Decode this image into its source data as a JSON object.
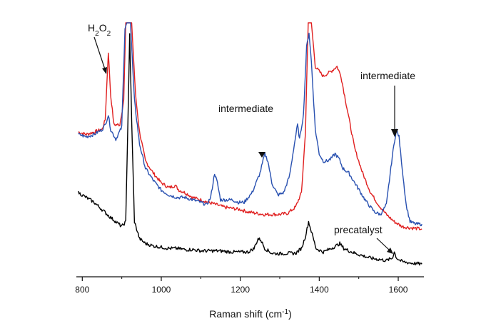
{
  "chart_data": {
    "type": "line",
    "title": "",
    "xlabel": {
      "main": "Raman shift (cm",
      "sup": "-1",
      "close": ")"
    },
    "ylabel": "",
    "xlim": [
      785,
      1665
    ],
    "ylim": [
      0,
      100
    ],
    "xticks": [
      800,
      1000,
      1200,
      1400,
      1600
    ],
    "grid": false,
    "series": [
      {
        "color": "#e02020",
        "points": [
          [
            790,
            55
          ],
          [
            810,
            54
          ],
          [
            830,
            55
          ],
          [
            850,
            56
          ],
          [
            858,
            60
          ],
          [
            866,
            88
          ],
          [
            872,
            70
          ],
          [
            880,
            58
          ],
          [
            895,
            58
          ],
          [
            905,
            68
          ],
          [
            910,
            100
          ],
          [
            925,
            100
          ],
          [
            935,
            70
          ],
          [
            945,
            55
          ],
          [
            960,
            43
          ],
          [
            980,
            38
          ],
          [
            1000,
            34
          ],
          [
            1020,
            32
          ],
          [
            1035,
            33
          ],
          [
            1045,
            31
          ],
          [
            1060,
            30
          ],
          [
            1080,
            28
          ],
          [
            1100,
            27
          ],
          [
            1120,
            26
          ],
          [
            1140,
            25
          ],
          [
            1160,
            24
          ],
          [
            1180,
            23.5
          ],
          [
            1200,
            23
          ],
          [
            1220,
            22
          ],
          [
            1240,
            21.5
          ],
          [
            1260,
            21
          ],
          [
            1280,
            21
          ],
          [
            1300,
            21
          ],
          [
            1320,
            21.5
          ],
          [
            1340,
            24
          ],
          [
            1355,
            30
          ],
          [
            1365,
            55
          ],
          [
            1372,
            100
          ],
          [
            1380,
            100
          ],
          [
            1390,
            82
          ],
          [
            1410,
            78
          ],
          [
            1420,
            79
          ],
          [
            1430,
            80
          ],
          [
            1445,
            82
          ],
          [
            1455,
            78
          ],
          [
            1470,
            65
          ],
          [
            1490,
            48
          ],
          [
            1510,
            38
          ],
          [
            1530,
            30
          ],
          [
            1550,
            25
          ],
          [
            1570,
            21
          ],
          [
            1590,
            18
          ],
          [
            1610,
            16
          ],
          [
            1630,
            15.5
          ],
          [
            1660,
            15
          ]
        ]
      },
      {
        "color": "#2850b0",
        "points": [
          [
            790,
            54
          ],
          [
            810,
            53
          ],
          [
            830,
            54
          ],
          [
            850,
            56
          ],
          [
            858,
            58
          ],
          [
            866,
            62
          ],
          [
            872,
            56
          ],
          [
            885,
            52
          ],
          [
            900,
            57
          ],
          [
            908,
            98
          ],
          [
            913,
            100
          ],
          [
            922,
            100
          ],
          [
            932,
            68
          ],
          [
            945,
            50
          ],
          [
            960,
            40
          ],
          [
            980,
            35
          ],
          [
            1000,
            31
          ],
          [
            1020,
            29
          ],
          [
            1040,
            28
          ],
          [
            1060,
            28
          ],
          [
            1080,
            27
          ],
          [
            1100,
            26
          ],
          [
            1115,
            25
          ],
          [
            1125,
            28
          ],
          [
            1135,
            38
          ],
          [
            1142,
            34
          ],
          [
            1150,
            27
          ],
          [
            1165,
            27
          ],
          [
            1180,
            27
          ],
          [
            1195,
            26
          ],
          [
            1210,
            26
          ],
          [
            1230,
            30
          ],
          [
            1250,
            38
          ],
          [
            1262,
            46
          ],
          [
            1270,
            43
          ],
          [
            1280,
            34
          ],
          [
            1295,
            29
          ],
          [
            1310,
            30
          ],
          [
            1325,
            37
          ],
          [
            1335,
            48
          ],
          [
            1345,
            58
          ],
          [
            1350,
            52
          ],
          [
            1360,
            62
          ],
          [
            1368,
            90
          ],
          [
            1374,
            96
          ],
          [
            1380,
            84
          ],
          [
            1390,
            56
          ],
          [
            1400,
            46
          ],
          [
            1410,
            43
          ],
          [
            1420,
            43
          ],
          [
            1430,
            44
          ],
          [
            1440,
            46
          ],
          [
            1450,
            44
          ],
          [
            1460,
            40
          ],
          [
            1475,
            38
          ],
          [
            1490,
            34
          ],
          [
            1505,
            30
          ],
          [
            1520,
            26
          ],
          [
            1540,
            22
          ],
          [
            1555,
            21
          ],
          [
            1570,
            25
          ],
          [
            1585,
            45
          ],
          [
            1595,
            56
          ],
          [
            1602,
            53
          ],
          [
            1610,
            40
          ],
          [
            1620,
            25
          ],
          [
            1630,
            18
          ],
          [
            1645,
            17
          ],
          [
            1660,
            17
          ]
        ]
      },
      {
        "color": "#000000",
        "points": [
          [
            790,
            30
          ],
          [
            810,
            28
          ],
          [
            830,
            26
          ],
          [
            850,
            23
          ],
          [
            870,
            20
          ],
          [
            885,
            18
          ],
          [
            900,
            16
          ],
          [
            910,
            18
          ],
          [
            915,
            55
          ],
          [
            920,
            95
          ],
          [
            925,
            60
          ],
          [
            932,
            18
          ],
          [
            945,
            11
          ],
          [
            960,
            9
          ],
          [
            980,
            8
          ],
          [
            1000,
            7.5
          ],
          [
            1020,
            7
          ],
          [
            1040,
            7
          ],
          [
            1060,
            6.5
          ],
          [
            1080,
            6.5
          ],
          [
            1100,
            6
          ],
          [
            1120,
            6
          ],
          [
            1140,
            6
          ],
          [
            1160,
            5.8
          ],
          [
            1180,
            5.5
          ],
          [
            1200,
            5.5
          ],
          [
            1220,
            5.5
          ],
          [
            1235,
            7
          ],
          [
            1245,
            11
          ],
          [
            1252,
            10.5
          ],
          [
            1262,
            7
          ],
          [
            1280,
            5
          ],
          [
            1300,
            4.8
          ],
          [
            1320,
            5
          ],
          [
            1340,
            5
          ],
          [
            1355,
            7
          ],
          [
            1365,
            12
          ],
          [
            1373,
            18
          ],
          [
            1380,
            14
          ],
          [
            1392,
            7
          ],
          [
            1410,
            5.5
          ],
          [
            1430,
            7
          ],
          [
            1442,
            8
          ],
          [
            1452,
            9
          ],
          [
            1462,
            7
          ],
          [
            1475,
            6
          ],
          [
            1490,
            5
          ],
          [
            1510,
            4
          ],
          [
            1530,
            3
          ],
          [
            1550,
            2.5
          ],
          [
            1570,
            2
          ],
          [
            1585,
            3
          ],
          [
            1590,
            5.5
          ],
          [
            1596,
            3
          ],
          [
            1610,
            1.5
          ],
          [
            1630,
            1
          ],
          [
            1660,
            0.5
          ]
        ]
      }
    ],
    "annotations": [
      {
        "text": "H",
        "sub": "2",
        "text2": "O",
        "sub2": "2",
        "x": 825,
        "y": 97
      },
      {
        "text": "intermediate",
        "x": 1255,
        "y": 75
      },
      {
        "text": "intermediate",
        "x": 1596,
        "y": 92
      },
      {
        "text": "precatalyst",
        "x": 1538,
        "y": 20
      }
    ]
  }
}
